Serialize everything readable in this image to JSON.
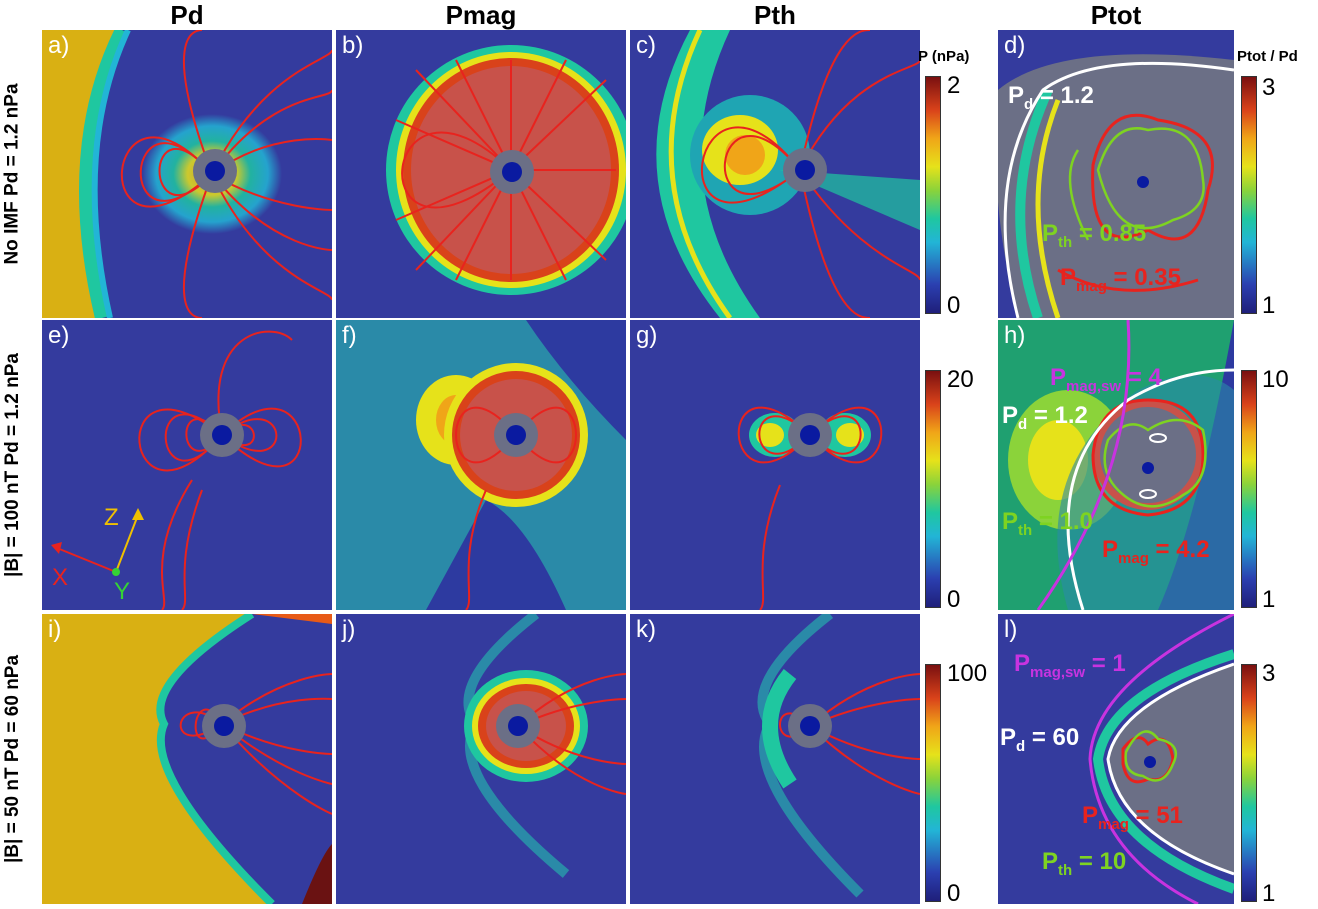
{
  "columns": [
    "Pd",
    "Pmag",
    "Pth",
    "Ptot"
  ],
  "rows": [
    "No IMF Pd = 1.2 nPa",
    "|B| = 100 nT Pd = 1.2 nPa",
    "|B| = 50 nT Pd = 60 nPa"
  ],
  "panel_labels": [
    "a)",
    "b)",
    "c)",
    "d)",
    "e)",
    "f)",
    "g)",
    "h)",
    "i)",
    "j)",
    "k)",
    "l)"
  ],
  "colorbars": {
    "pressure_unit": "P (nPa)",
    "ratio_unit": "Ptot / Pd",
    "row1_pressure": {
      "max": "2",
      "min": "0"
    },
    "row2_pressure": {
      "max": "20",
      "min": "0"
    },
    "row3_pressure": {
      "max": "100",
      "min": "0"
    },
    "row1_ratio": {
      "max": "3",
      "min": "1"
    },
    "row2_ratio": {
      "max": "10",
      "min": "1"
    },
    "row3_ratio": {
      "max": "3",
      "min": "1"
    }
  },
  "annotations": {
    "d": {
      "pd": {
        "sym": "P",
        "sub": "d",
        "val": " = 1.2"
      },
      "pth": {
        "sym": "P",
        "sub": "th",
        "val": " = 0.85"
      },
      "pmag": {
        "sym": "P",
        "sub": "mag",
        "val": " = 0.35"
      }
    },
    "h": {
      "pmagsw": {
        "sym": "P",
        "sub": "mag,sw",
        "val": " = 4"
      },
      "pd": {
        "sym": "P",
        "sub": "d",
        "val": " = 1.2"
      },
      "pth": {
        "sym": "P",
        "sub": "th",
        "val": " = 1.0"
      },
      "pmag": {
        "sym": "P",
        "sub": "mag",
        "val": " = 4.2"
      }
    },
    "l": {
      "pmagsw": {
        "sym": "P",
        "sub": "mag,sw",
        "val": " = 1"
      },
      "pd": {
        "sym": "P",
        "sub": "d",
        "val": " = 60"
      },
      "pmag": {
        "sym": "P",
        "sub": "mag",
        "val": " = 51"
      },
      "pth": {
        "sym": "P",
        "sub": "th",
        "val": " = 10"
      }
    }
  },
  "axes_triad": {
    "x": "X",
    "y": "Y",
    "z": "Z"
  },
  "colors": {
    "background": "#343b9e",
    "field_lines": "#e8231e",
    "pd_contour": "#ffffff",
    "pth_contour": "#7ed321",
    "pmag_contour": "#e8231e",
    "pmagsw_contour": "#c833e0",
    "planet_halo": "#6b6f86",
    "planet_core": "#0a1aa0"
  }
}
